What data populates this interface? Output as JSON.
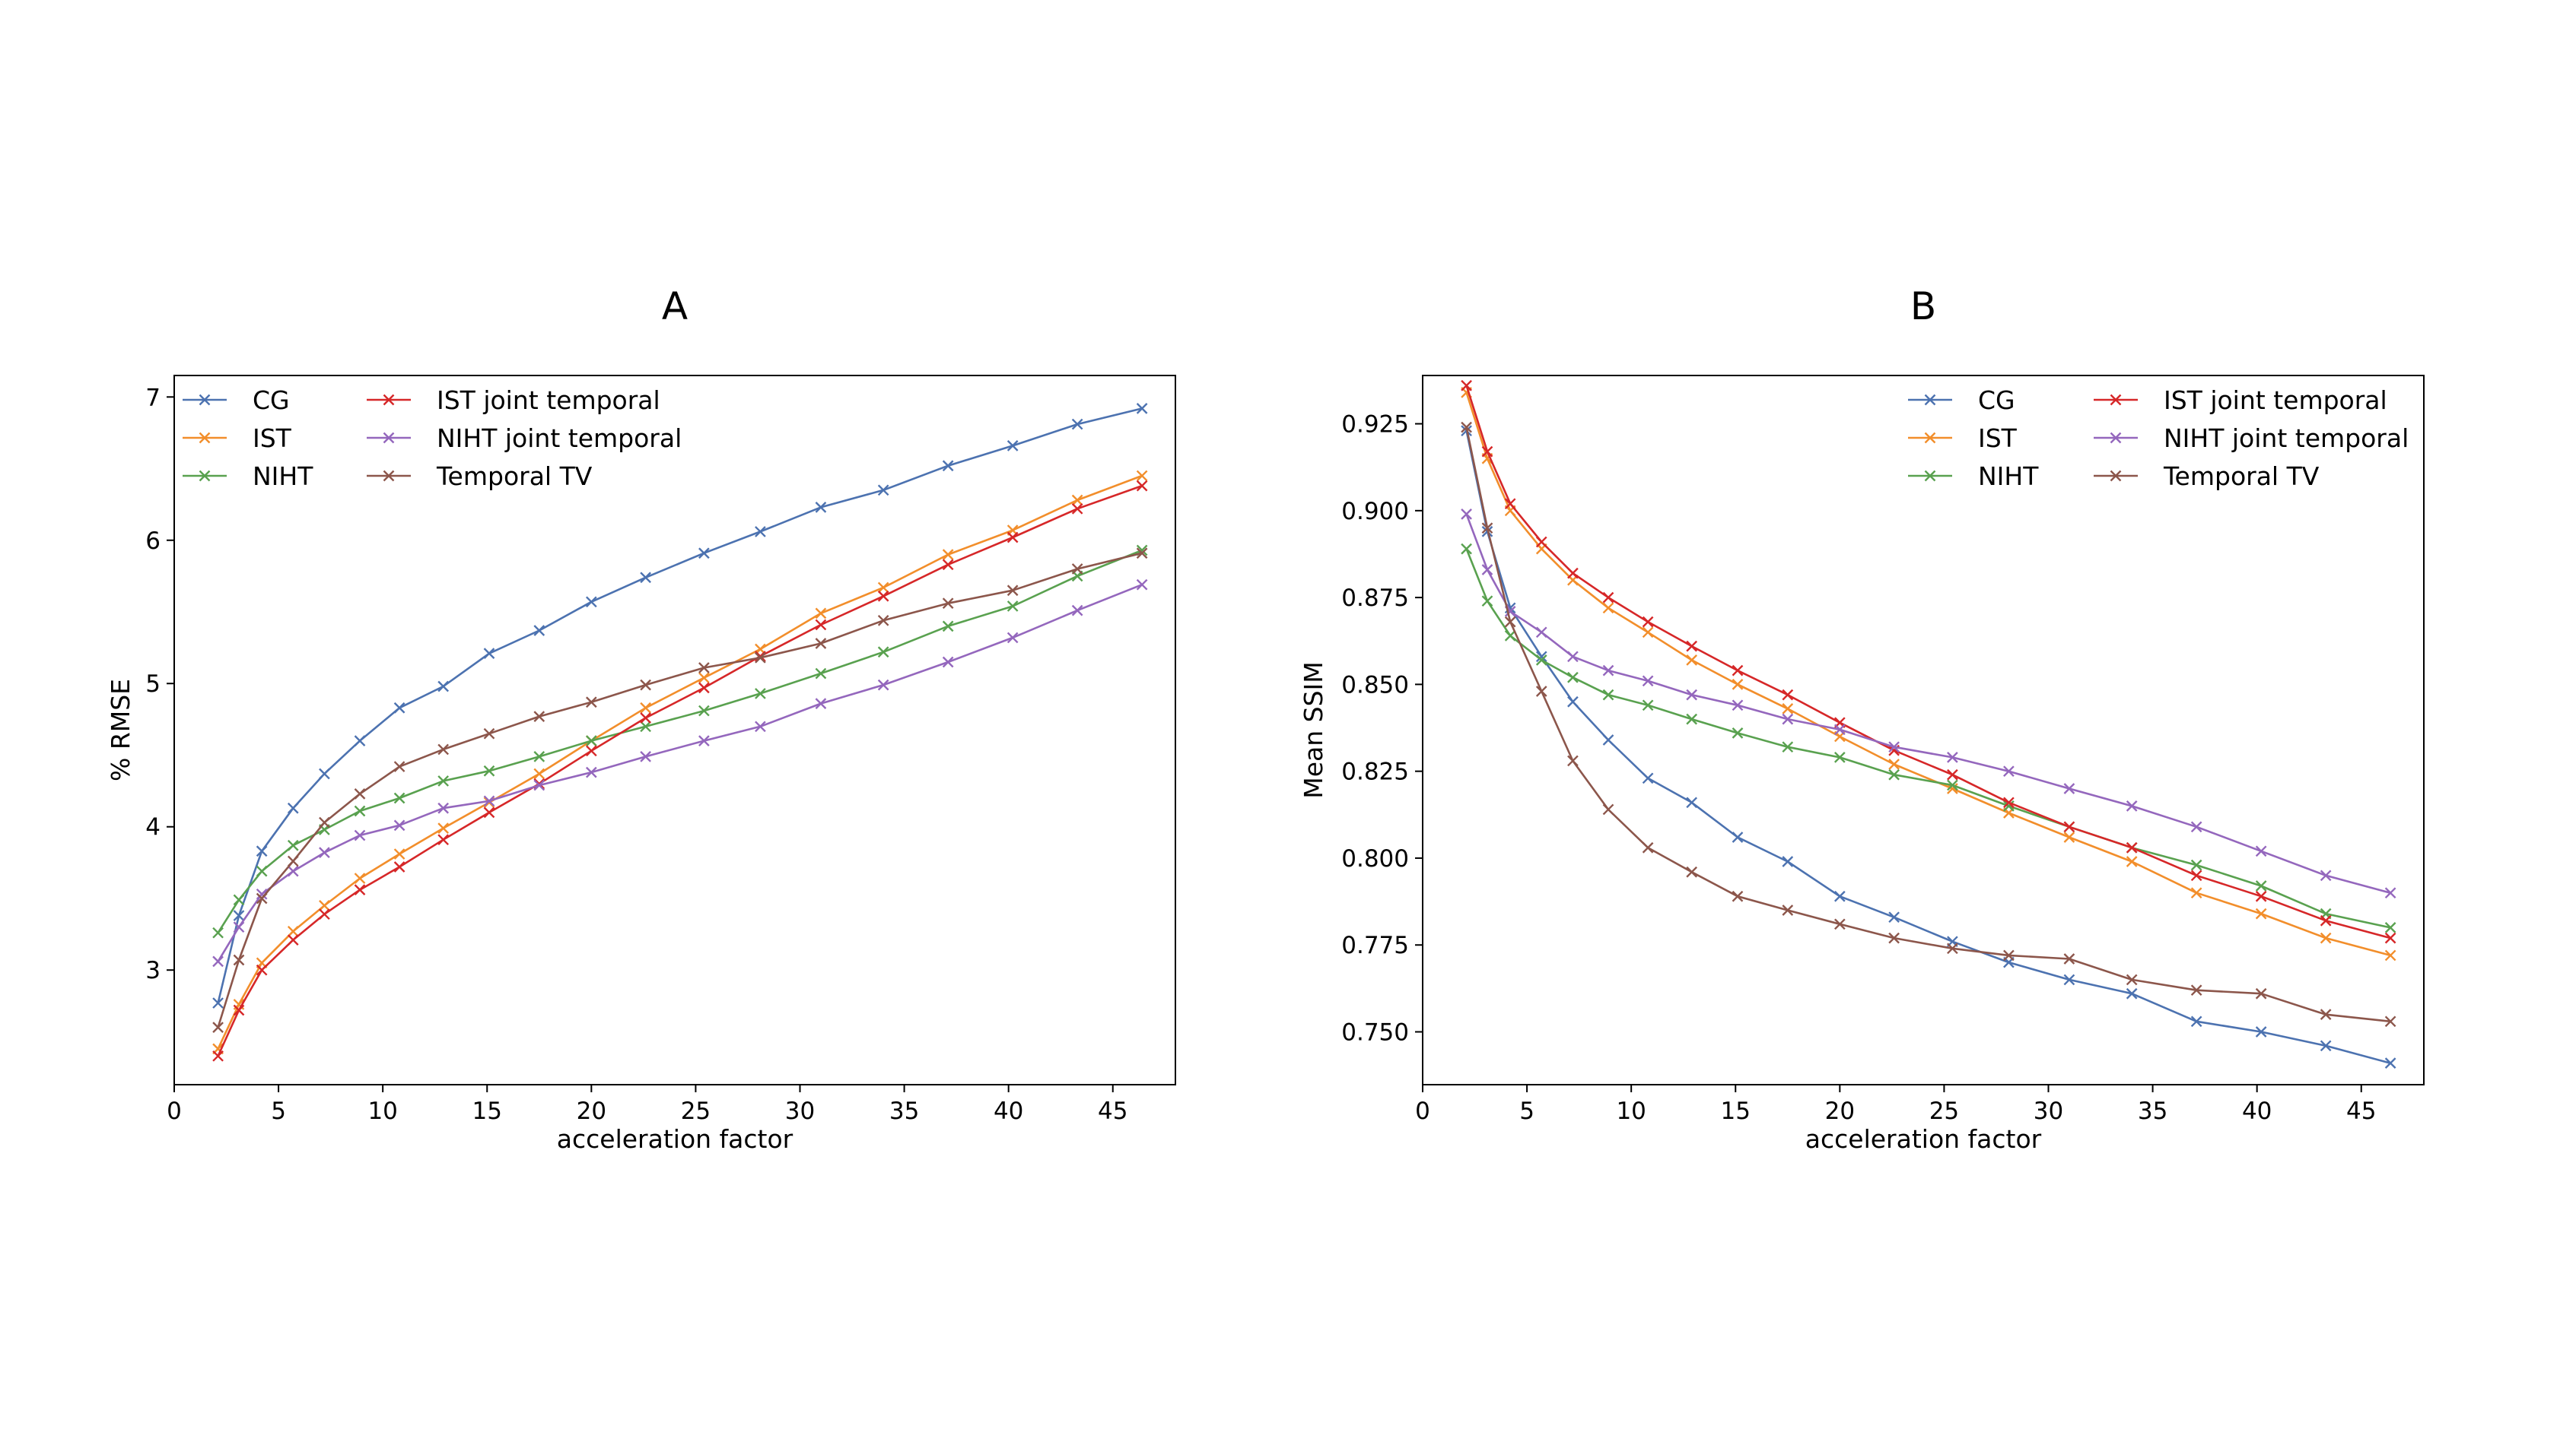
{
  "chart_data": [
    {
      "type": "line",
      "title": "A",
      "xlabel": "acceleration factor",
      "ylabel": "% RMSE",
      "xlim": [
        0,
        48
      ],
      "ylim": [
        2.2,
        7.15
      ],
      "xticks": [
        0,
        5,
        10,
        15,
        20,
        25,
        30,
        35,
        40,
        45
      ],
      "xtick_labels": [
        "0",
        "5",
        "10",
        "15",
        "20",
        "25",
        "30",
        "35",
        "40",
        "45"
      ],
      "yticks": [
        3,
        4,
        5,
        6,
        7
      ],
      "ytick_labels": [
        "3",
        "4",
        "5",
        "6",
        "7"
      ],
      "legend_position": "top-left",
      "legend_columns": 2,
      "x": [
        2.1,
        3.1,
        4.2,
        5.7,
        7.2,
        8.9,
        10.8,
        12.9,
        15.1,
        17.5,
        20.0,
        22.6,
        25.4,
        28.1,
        31.0,
        34.0,
        37.1,
        40.2,
        43.3,
        46.4
      ],
      "series": [
        {
          "name": "CG",
          "color": "#4c72b0",
          "values": [
            2.77,
            3.38,
            3.83,
            4.13,
            4.37,
            4.6,
            4.83,
            4.98,
            5.21,
            5.37,
            5.57,
            5.74,
            5.91,
            6.06,
            6.23,
            6.35,
            6.52,
            6.66,
            6.81,
            6.92
          ]
        },
        {
          "name": "IST",
          "color": "#f28e2b",
          "values": [
            2.45,
            2.76,
            3.05,
            3.27,
            3.45,
            3.64,
            3.81,
            3.99,
            4.17,
            4.37,
            4.6,
            4.83,
            5.04,
            5.24,
            5.49,
            5.67,
            5.9,
            6.07,
            6.28,
            6.45
          ]
        },
        {
          "name": "NIHT",
          "color": "#59a14f",
          "values": [
            3.26,
            3.49,
            3.69,
            3.87,
            3.98,
            4.11,
            4.2,
            4.32,
            4.39,
            4.49,
            4.6,
            4.7,
            4.81,
            4.93,
            5.07,
            5.22,
            5.4,
            5.54,
            5.75,
            5.93
          ]
        },
        {
          "name": "IST joint temporal",
          "color": "#d62728",
          "values": [
            2.4,
            2.72,
            3.0,
            3.21,
            3.39,
            3.56,
            3.72,
            3.91,
            4.1,
            4.3,
            4.53,
            4.76,
            4.97,
            5.19,
            5.41,
            5.61,
            5.83,
            6.02,
            6.22,
            6.38
          ]
        },
        {
          "name": "NIHT joint temporal",
          "color": "#9467bd",
          "values": [
            3.06,
            3.3,
            3.53,
            3.69,
            3.82,
            3.94,
            4.01,
            4.13,
            4.18,
            4.29,
            4.38,
            4.49,
            4.6,
            4.7,
            4.86,
            4.99,
            5.15,
            5.32,
            5.51,
            5.69
          ]
        },
        {
          "name": "Temporal TV",
          "color": "#8c564b",
          "values": [
            2.6,
            3.07,
            3.5,
            3.76,
            4.03,
            4.23,
            4.42,
            4.54,
            4.65,
            4.77,
            4.87,
            4.99,
            5.11,
            5.18,
            5.28,
            5.44,
            5.56,
            5.65,
            5.8,
            5.91
          ]
        }
      ]
    },
    {
      "type": "line",
      "title": "B",
      "xlabel": "acceleration factor",
      "ylabel": "Mean SSIM",
      "xlim": [
        0,
        48
      ],
      "ylim": [
        0.7348,
        0.9389
      ],
      "xticks": [
        0,
        5,
        10,
        15,
        20,
        25,
        30,
        35,
        40,
        45
      ],
      "xtick_labels": [
        "0",
        "5",
        "10",
        "15",
        "20",
        "25",
        "30",
        "35",
        "40",
        "45"
      ],
      "yticks": [
        0.75,
        0.775,
        0.8,
        0.825,
        0.85,
        0.875,
        0.9,
        0.925
      ],
      "ytick_labels": [
        "0.750",
        "0.775",
        "0.800",
        "0.825",
        "0.850",
        "0.875",
        "0.900",
        "0.925"
      ],
      "legend_position": "top-right",
      "legend_columns": 2,
      "x": [
        2.1,
        3.1,
        4.2,
        5.7,
        7.2,
        8.9,
        10.8,
        12.9,
        15.1,
        17.5,
        20.0,
        22.6,
        25.4,
        28.1,
        31.0,
        34.0,
        37.1,
        40.2,
        43.3,
        46.4
      ],
      "series": [
        {
          "name": "CG",
          "color": "#4c72b0",
          "values": [
            0.923,
            0.894,
            0.872,
            0.858,
            0.845,
            0.834,
            0.823,
            0.816,
            0.806,
            0.799,
            0.789,
            0.783,
            0.776,
            0.77,
            0.765,
            0.761,
            0.753,
            0.75,
            0.746,
            0.741
          ]
        },
        {
          "name": "IST",
          "color": "#f28e2b",
          "values": [
            0.934,
            0.915,
            0.9,
            0.889,
            0.88,
            0.872,
            0.865,
            0.857,
            0.85,
            0.843,
            0.835,
            0.827,
            0.82,
            0.813,
            0.806,
            0.799,
            0.79,
            0.784,
            0.777,
            0.772
          ]
        },
        {
          "name": "NIHT",
          "color": "#59a14f",
          "values": [
            0.889,
            0.874,
            0.864,
            0.857,
            0.852,
            0.847,
            0.844,
            0.84,
            0.836,
            0.832,
            0.829,
            0.824,
            0.821,
            0.815,
            0.809,
            0.803,
            0.798,
            0.792,
            0.784,
            0.78
          ]
        },
        {
          "name": "IST joint temporal",
          "color": "#d62728",
          "values": [
            0.936,
            0.917,
            0.902,
            0.891,
            0.882,
            0.875,
            0.868,
            0.861,
            0.854,
            0.847,
            0.839,
            0.831,
            0.824,
            0.816,
            0.809,
            0.803,
            0.795,
            0.789,
            0.782,
            0.777
          ]
        },
        {
          "name": "NIHT joint temporal",
          "color": "#9467bd",
          "values": [
            0.899,
            0.883,
            0.871,
            0.865,
            0.858,
            0.854,
            0.851,
            0.847,
            0.844,
            0.84,
            0.837,
            0.832,
            0.829,
            0.825,
            0.82,
            0.815,
            0.809,
            0.802,
            0.795,
            0.79
          ]
        },
        {
          "name": "Temporal TV",
          "color": "#8c564b",
          "values": [
            0.924,
            0.895,
            0.868,
            0.848,
            0.828,
            0.814,
            0.803,
            0.796,
            0.789,
            0.785,
            0.781,
            0.777,
            0.774,
            0.772,
            0.771,
            0.765,
            0.762,
            0.761,
            0.755,
            0.753
          ]
        }
      ]
    }
  ]
}
